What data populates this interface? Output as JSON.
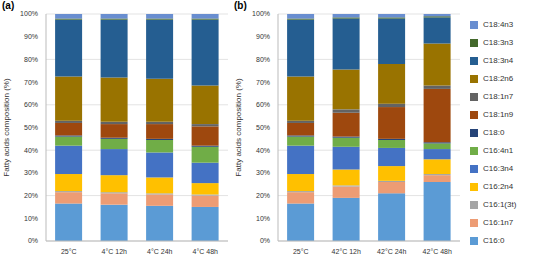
{
  "chart_data": [
    {
      "type": "bar",
      "title": "(a)",
      "y_label": "Fatty acids composition (%)",
      "stacked": true,
      "grid": true,
      "categories": [
        "25°C",
        "4°C 12h",
        "4°C 24h",
        "4°C 48h"
      ],
      "ylim": [
        0,
        100
      ],
      "yticks": [
        {
          "value": 0,
          "label": "0%"
        },
        {
          "value": 10,
          "label": "10%"
        },
        {
          "value": 20,
          "label": "20%"
        },
        {
          "value": 30,
          "label": "30%"
        },
        {
          "value": 40,
          "label": "40%"
        },
        {
          "value": 50,
          "label": "50%"
        },
        {
          "value": 60,
          "label": "60%"
        },
        {
          "value": 70,
          "label": "70%"
        },
        {
          "value": 80,
          "label": "80%"
        },
        {
          "value": 90,
          "label": "90%"
        },
        {
          "value": 100,
          "label": "100%"
        }
      ],
      "series": [
        {
          "name": "C16:0",
          "color": "#5b9bd5",
          "values": [
            16.5,
            16,
            15.5,
            15
          ]
        },
        {
          "name": "C16:1n7",
          "color": "#ed9c74",
          "values": [
            5,
            5,
            5,
            5
          ]
        },
        {
          "name": "C16:1(3t)",
          "color": "#a5a5a5",
          "values": [
            0.5,
            0.5,
            0.5,
            0.5
          ]
        },
        {
          "name": "C16:2n4",
          "color": "#ffc000",
          "values": [
            7.5,
            7.5,
            7,
            5
          ]
        },
        {
          "name": "C16:3n4",
          "color": "#4472c4",
          "values": [
            12.5,
            11.5,
            11,
            9
          ]
        },
        {
          "name": "C16:4n1",
          "color": "#70ad47",
          "values": [
            4,
            4.5,
            5.5,
            7
          ]
        },
        {
          "name": "C18:0",
          "color": "#264478",
          "values": [
            0.5,
            0.5,
            0.5,
            0.5
          ]
        },
        {
          "name": "C18:1n9",
          "color": "#9e480e",
          "values": [
            5.5,
            6,
            6.5,
            8.5
          ]
        },
        {
          "name": "C18:1n7",
          "color": "#636363",
          "values": [
            1,
            1,
            1,
            1
          ]
        },
        {
          "name": "C18:2n6",
          "color": "#997300",
          "values": [
            19.5,
            19.5,
            19,
            17
          ]
        },
        {
          "name": "C18:3n4",
          "color": "#255e91",
          "values": [
            25,
            25.5,
            26,
            29
          ]
        },
        {
          "name": "C18:3n3",
          "color": "#43682b",
          "values": [
            0.5,
            0.5,
            0.5,
            0.5
          ]
        },
        {
          "name": "C18:4n3",
          "color": "#698ed0",
          "values": [
            2,
            2,
            2,
            2
          ]
        }
      ]
    },
    {
      "type": "bar",
      "title": "(b)",
      "y_label": "Fatty acids composition (%)",
      "stacked": true,
      "grid": true,
      "legend": "right",
      "categories": [
        "25°C",
        "42°C 12h",
        "42°C 24h",
        "42°C 48h"
      ],
      "ylim": [
        0,
        100
      ],
      "yticks": [
        {
          "value": 0,
          "label": "0%"
        },
        {
          "value": 10,
          "label": "10%"
        },
        {
          "value": 20,
          "label": "20%"
        },
        {
          "value": 30,
          "label": "30%"
        },
        {
          "value": 40,
          "label": "40%"
        },
        {
          "value": 50,
          "label": "50%"
        },
        {
          "value": 60,
          "label": "60%"
        },
        {
          "value": 70,
          "label": "70%"
        },
        {
          "value": 80,
          "label": "80%"
        },
        {
          "value": 90,
          "label": "90%"
        },
        {
          "value": 100,
          "label": "100%"
        }
      ],
      "series": [
        {
          "name": "C16:0",
          "color": "#5b9bd5",
          "values": [
            16.5,
            19,
            21,
            26
          ]
        },
        {
          "name": "C16:1n7",
          "color": "#ed9c74",
          "values": [
            5,
            5,
            5,
            3
          ]
        },
        {
          "name": "C16:1(3t)",
          "color": "#a5a5a5",
          "values": [
            0.5,
            0.5,
            0.5,
            0.5
          ]
        },
        {
          "name": "C16:2n4",
          "color": "#ffc000",
          "values": [
            7.5,
            7,
            6.5,
            6.5
          ]
        },
        {
          "name": "C16:3n4",
          "color": "#4472c4",
          "values": [
            12.5,
            10,
            8,
            4.5
          ]
        },
        {
          "name": "C16:4n1",
          "color": "#70ad47",
          "values": [
            4,
            4,
            3.5,
            2.5
          ]
        },
        {
          "name": "C18:0",
          "color": "#264478",
          "values": [
            0.5,
            0.5,
            0.5,
            0.5
          ]
        },
        {
          "name": "C18:1n9",
          "color": "#9e480e",
          "values": [
            5.5,
            10.5,
            14,
            23.5
          ]
        },
        {
          "name": "C18:1n7",
          "color": "#636363",
          "values": [
            1,
            1.5,
            1.5,
            1.5
          ]
        },
        {
          "name": "C18:2n6",
          "color": "#997300",
          "values": [
            19.5,
            17.5,
            17.5,
            18.5
          ]
        },
        {
          "name": "C18:3n4",
          "color": "#255e91",
          "values": [
            25,
            22.5,
            20,
            11.5
          ]
        },
        {
          "name": "C18:3n3",
          "color": "#43682b",
          "values": [
            0.5,
            0.5,
            0.5,
            0.5
          ]
        },
        {
          "name": "C18:4n3",
          "color": "#698ed0",
          "values": [
            2,
            1.5,
            1.5,
            1
          ]
        }
      ]
    }
  ]
}
